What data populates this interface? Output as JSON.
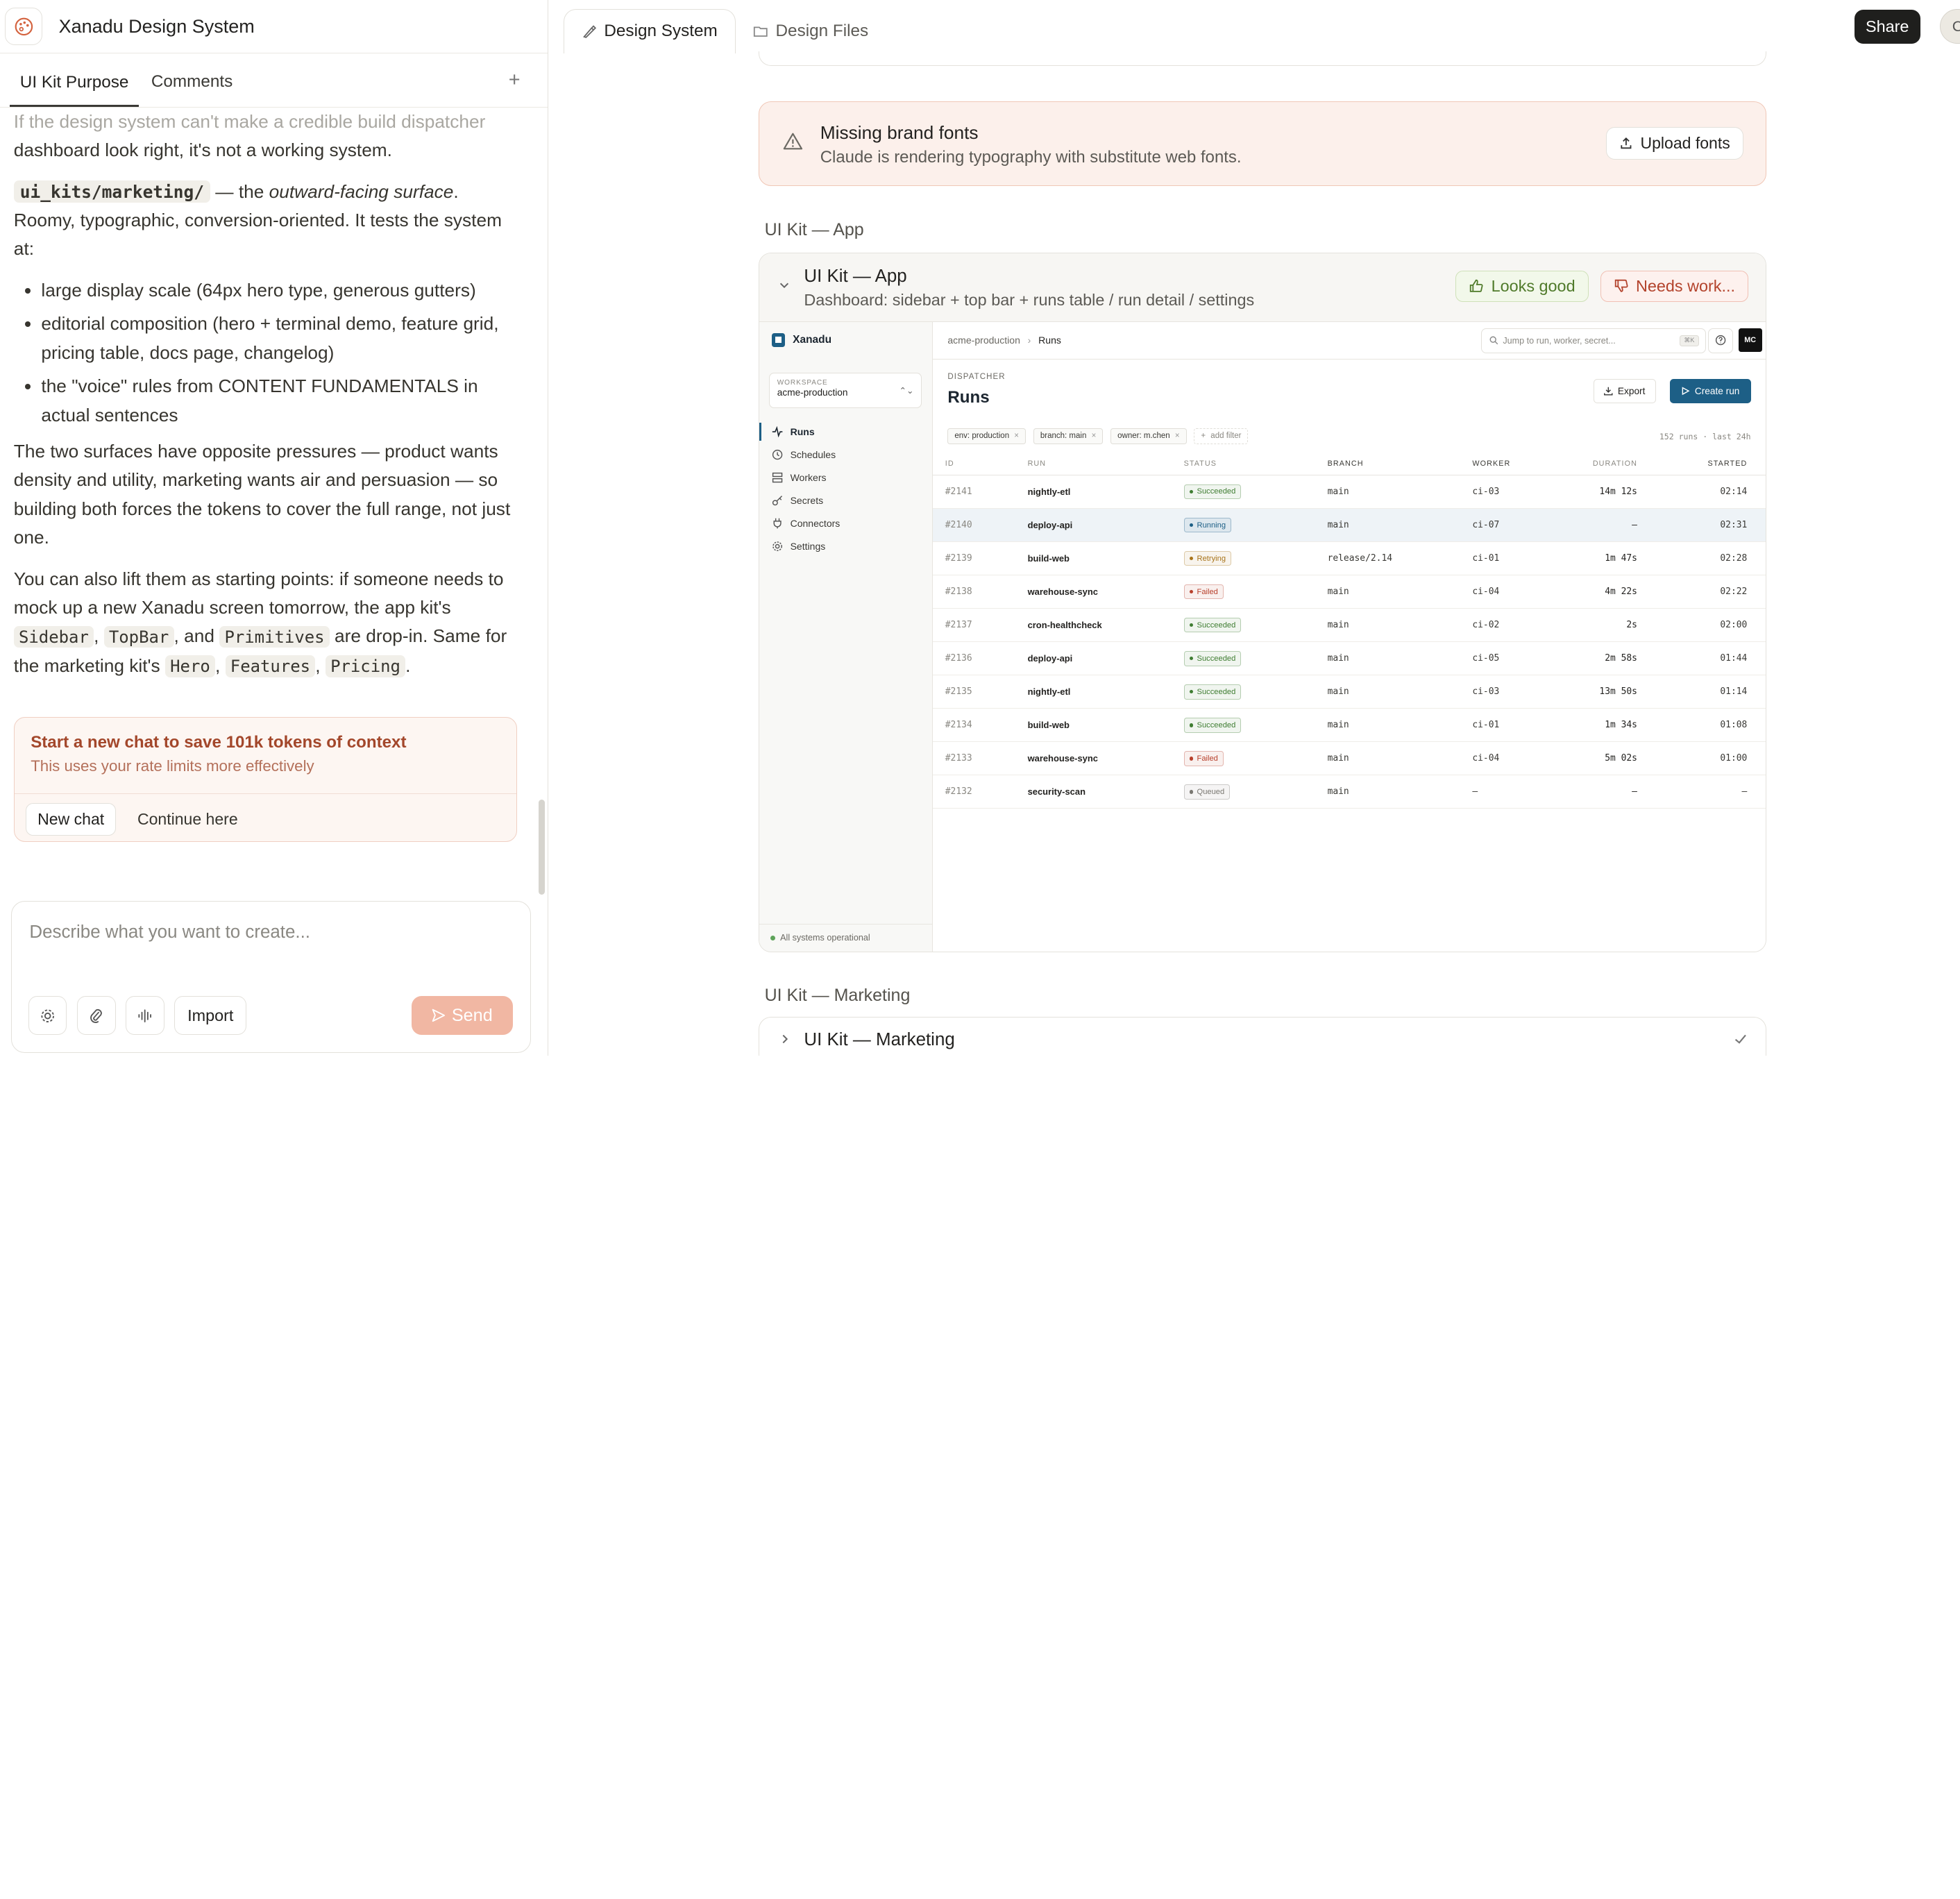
{
  "app": {
    "title": "Xanadu Design System"
  },
  "left_tabs": [
    {
      "label": "UI Kit Purpose",
      "active": true
    },
    {
      "label": "Comments",
      "active": false
    }
  ],
  "chat": {
    "faded_line": "If the design system can't make a credible build dispatcher",
    "p1_tail": "dashboard look right, it's not a working system.",
    "mk_code": "ui_kits/marketing/",
    "mk_dash": " — the ",
    "mk_em": "outward-facing surface",
    "mk_rest": ". Roomy, typographic, conversion-oriented. It tests the system at:",
    "bullets": [
      "large display scale (64px hero type, generous gutters)",
      "editorial composition (hero + terminal demo, feature grid, pricing table, docs page, changelog)",
      "the \"voice\" rules from CONTENT FUNDAMENTALS in actual sentences"
    ],
    "p3": "The two surfaces have opposite pressures — product wants density and utility, marketing wants air and persuasion — so building both forces the tokens to cover the full range, not just one.",
    "p4_a": "You can also lift them as starting points: if someone needs to mock up a new Xanadu screen tomorrow, the app kit's ",
    "p4_code1": "Sidebar",
    "p4_b": ", ",
    "p4_code2": "TopBar",
    "p4_c": ", and ",
    "p4_code3": "Primitives",
    "p4_d": " are drop-in. Same for the marketing kit's ",
    "p4_code4": "Hero",
    "p4_e": ", ",
    "p4_code5": "Features",
    "p4_f": ", ",
    "p4_code6": "Pricing",
    "p4_g": "."
  },
  "context_card": {
    "title": "Start a new chat to save 101k tokens of context",
    "subtitle": "This uses your rate limits more effectively",
    "new_chat": "New chat",
    "continue": "Continue here"
  },
  "composer": {
    "placeholder": "Describe what you want to create...",
    "import": "Import",
    "send": "Send"
  },
  "right_tabs": [
    {
      "label": "Design System",
      "active": true
    },
    {
      "label": "Design Files",
      "active": false
    }
  ],
  "share": "Share",
  "user_initial": "C",
  "warning": {
    "title": "Missing brand fonts",
    "subtitle": "Claude is rendering typography with substitute web fonts.",
    "button": "Upload fonts"
  },
  "section_app": "UI Kit — App",
  "kit_app": {
    "title": "UI Kit — App",
    "subtitle": "Dashboard: sidebar + top bar + runs table / run detail / settings",
    "good": "Looks good",
    "work": "Needs work..."
  },
  "mini_app": {
    "brand": "Xanadu",
    "workspace_label": "WORKSPACE",
    "workspace_value": "acme-production",
    "nav": [
      "Runs",
      "Schedules",
      "Workers",
      "Secrets",
      "Connectors",
      "Settings"
    ],
    "status": "All systems operational",
    "crumb1": "acme-production",
    "crumb2": "Runs",
    "search_ph": "Jump to run, worker, secret...",
    "kbd": "⌘K",
    "avatar": "MC",
    "disp_label": "DISPATCHER",
    "disp_title": "Runs",
    "export": "Export",
    "create": "Create run",
    "filters": [
      "env: production",
      "branch: main",
      "owner: m.chen"
    ],
    "add_filter": "add filter",
    "meta": "152 runs · last 24h",
    "columns": [
      "ID",
      "RUN",
      "STATUS",
      "BRANCH",
      "WORKER",
      "DURATION",
      "STARTED"
    ],
    "rows": [
      {
        "id": "#2141",
        "run": "nightly-etl",
        "status": "Succeeded",
        "branch": "main",
        "worker": "ci-03",
        "duration": "14m 12s",
        "started": "02:14"
      },
      {
        "id": "#2140",
        "run": "deploy-api",
        "status": "Running",
        "branch": "main",
        "worker": "ci-07",
        "duration": "—",
        "started": "02:31"
      },
      {
        "id": "#2139",
        "run": "build-web",
        "status": "Retrying",
        "branch": "release/2.14",
        "worker": "ci-01",
        "duration": "1m 47s",
        "started": "02:28"
      },
      {
        "id": "#2138",
        "run": "warehouse-sync",
        "status": "Failed",
        "branch": "main",
        "worker": "ci-04",
        "duration": "4m 22s",
        "started": "02:22"
      },
      {
        "id": "#2137",
        "run": "cron-healthcheck",
        "status": "Succeeded",
        "branch": "main",
        "worker": "ci-02",
        "duration": "2s",
        "started": "02:00"
      },
      {
        "id": "#2136",
        "run": "deploy-api",
        "status": "Succeeded",
        "branch": "main",
        "worker": "ci-05",
        "duration": "2m 58s",
        "started": "01:44"
      },
      {
        "id": "#2135",
        "run": "nightly-etl",
        "status": "Succeeded",
        "branch": "main",
        "worker": "ci-03",
        "duration": "13m 50s",
        "started": "01:14"
      },
      {
        "id": "#2134",
        "run": "build-web",
        "status": "Succeeded",
        "branch": "main",
        "worker": "ci-01",
        "duration": "1m 34s",
        "started": "01:08"
      },
      {
        "id": "#2133",
        "run": "warehouse-sync",
        "status": "Failed",
        "branch": "main",
        "worker": "ci-04",
        "duration": "5m 02s",
        "started": "01:00"
      },
      {
        "id": "#2132",
        "run": "security-scan",
        "status": "Queued",
        "branch": "main",
        "worker": "—",
        "duration": "—",
        "started": "—"
      }
    ],
    "status_colors": {
      "Succeeded": "#3f7d32",
      "Running": "#1d5f86",
      "Retrying": "#a8741a",
      "Failed": "#b8402c",
      "Queued": "#7a7872"
    }
  },
  "section_marketing": "UI Kit — Marketing",
  "kit_marketing": {
    "title": "UI Kit — Marketing"
  }
}
